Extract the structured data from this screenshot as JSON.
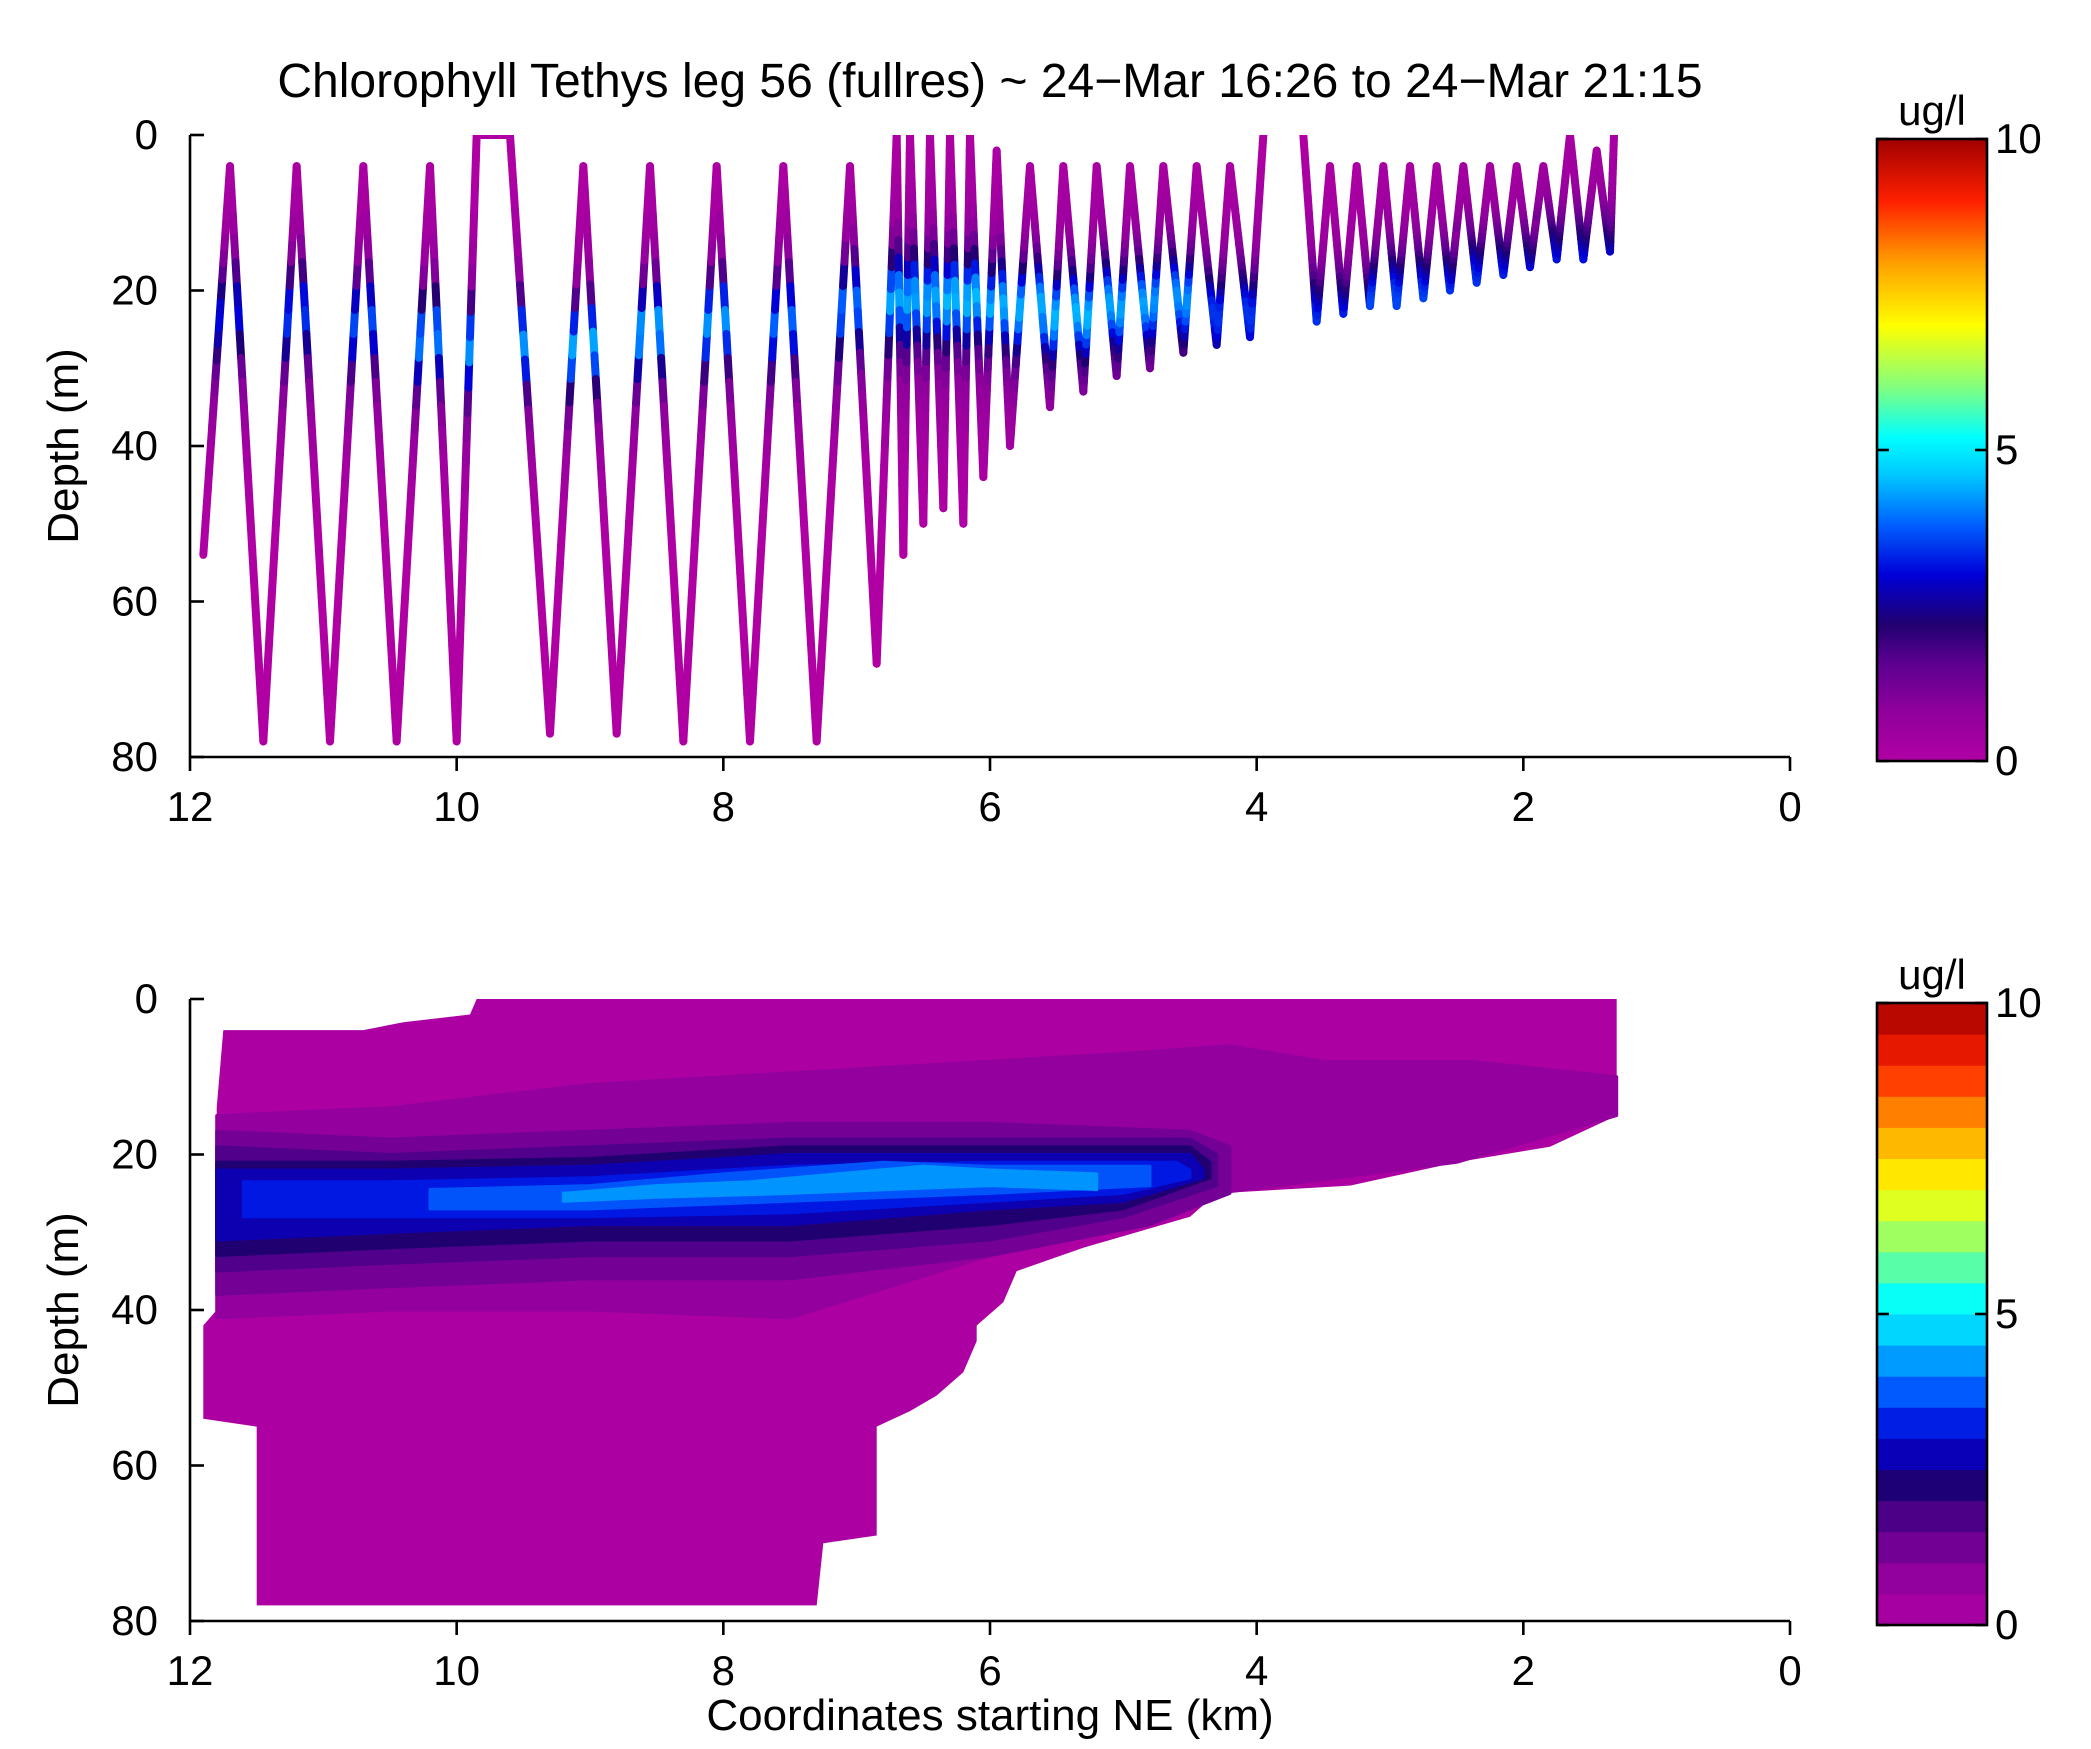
{
  "chart_data": [
    {
      "type": "scatter",
      "subtype": "glider-track",
      "title": "Chlorophyll Tethys leg 56 (fullres) ~ 24−Mar 16:26 to 24−Mar 21:15",
      "xlabel": "",
      "ylabel": "Depth (m)",
      "xlim": [
        12,
        0
      ],
      "ylim": [
        0,
        80
      ],
      "x_ticks": [
        "12",
        "10",
        "8",
        "6",
        "4",
        "2",
        "0"
      ],
      "y_ticks": [
        "0",
        "20",
        "40",
        "60",
        "80"
      ],
      "grid": false,
      "colorbar": {
        "label": "ug/l",
        "min": 0,
        "max": 10,
        "ticks": [
          "0",
          "5",
          "10"
        ],
        "colormap": "purple-blue-cyan-green-yellow-red"
      },
      "profile_turns": [
        [
          11.9,
          54
        ],
        [
          11.7,
          4
        ],
        [
          11.45,
          78
        ],
        [
          11.2,
          4
        ],
        [
          10.95,
          78
        ],
        [
          10.7,
          4
        ],
        [
          10.45,
          78
        ],
        [
          10.2,
          4
        ],
        [
          10.0,
          78
        ],
        [
          9.85,
          0
        ],
        [
          9.6,
          0
        ],
        [
          9.3,
          77
        ],
        [
          9.05,
          4
        ],
        [
          8.8,
          77
        ],
        [
          8.55,
          4
        ],
        [
          8.3,
          78
        ],
        [
          8.05,
          4
        ],
        [
          7.8,
          78
        ],
        [
          7.55,
          4
        ],
        [
          7.3,
          78
        ],
        [
          7.05,
          4
        ],
        [
          6.85,
          68
        ],
        [
          6.7,
          0
        ],
        [
          6.65,
          54
        ],
        [
          6.6,
          0
        ],
        [
          6.5,
          50
        ],
        [
          6.45,
          0
        ],
        [
          6.35,
          48
        ],
        [
          6.3,
          0
        ],
        [
          6.2,
          50
        ],
        [
          6.15,
          0
        ],
        [
          6.05,
          44
        ],
        [
          5.95,
          2
        ],
        [
          5.85,
          40
        ],
        [
          5.7,
          4
        ],
        [
          5.55,
          35
        ],
        [
          5.45,
          4
        ],
        [
          5.3,
          33
        ],
        [
          5.2,
          4
        ],
        [
          5.05,
          31
        ],
        [
          4.95,
          4
        ],
        [
          4.8,
          30
        ],
        [
          4.7,
          4
        ],
        [
          4.55,
          28
        ],
        [
          4.45,
          4
        ],
        [
          4.3,
          27
        ],
        [
          4.2,
          4
        ],
        [
          4.05,
          26
        ],
        [
          3.95,
          0
        ]
      ],
      "profile_turns_2": [
        [
          3.65,
          0
        ],
        [
          3.55,
          24
        ],
        [
          3.45,
          4
        ],
        [
          3.35,
          23
        ],
        [
          3.25,
          4
        ],
        [
          3.15,
          22
        ],
        [
          3.05,
          4
        ],
        [
          2.95,
          22
        ],
        [
          2.85,
          4
        ],
        [
          2.75,
          21
        ],
        [
          2.65,
          4
        ],
        [
          2.55,
          20
        ],
        [
          2.45,
          4
        ],
        [
          2.35,
          19
        ],
        [
          2.25,
          4
        ],
        [
          2.15,
          18
        ],
        [
          2.05,
          4
        ],
        [
          1.95,
          17
        ],
        [
          1.85,
          4
        ],
        [
          1.75,
          16
        ],
        [
          1.65,
          0
        ],
        [
          1.55,
          16
        ],
        [
          1.45,
          2
        ],
        [
          1.35,
          15
        ],
        [
          1.32,
          0
        ]
      ],
      "chlorophyll_max": [
        [
          11.8,
          23,
          2.5
        ],
        [
          11.2,
          23,
          3.0
        ],
        [
          10.7,
          24,
          3.2
        ],
        [
          10.2,
          26,
          3.8
        ],
        [
          9.7,
          27,
          4.0
        ],
        [
          9.1,
          27,
          4.2
        ],
        [
          8.5,
          25,
          4.2
        ],
        [
          8.0,
          24,
          4.0
        ],
        [
          7.5,
          24,
          3.5
        ],
        [
          7.0,
          22,
          3.6
        ],
        [
          6.6,
          21,
          4.2
        ],
        [
          6.2,
          21,
          4.4
        ],
        [
          5.8,
          22,
          4.3
        ],
        [
          5.4,
          23,
          4.4
        ],
        [
          5.0,
          22,
          4.2
        ],
        [
          4.6,
          21,
          4.0
        ],
        [
          4.3,
          23,
          3.0
        ],
        [
          3.5,
          24,
          3.0
        ],
        [
          2.8,
          21,
          3.2
        ],
        [
          2.2,
          19,
          3.0
        ],
        [
          1.6,
          17,
          2.8
        ]
      ]
    },
    {
      "type": "heatmap",
      "subtype": "filled-contour",
      "title": "",
      "xlabel": "Coordinates starting NE (km)",
      "ylabel": "Depth (m)",
      "xlim": [
        12,
        0
      ],
      "ylim": [
        0,
        80
      ],
      "x_ticks": [
        "12",
        "10",
        "8",
        "6",
        "4",
        "2",
        "0"
      ],
      "y_ticks": [
        "0",
        "20",
        "40",
        "60",
        "80"
      ],
      "grid": false,
      "colorbar": {
        "label": "ug/l",
        "min": 0,
        "max": 10,
        "ticks": [
          "0",
          "5",
          "10"
        ],
        "levels": 20
      },
      "domain_top": [
        [
          11.75,
          4
        ],
        [
          10.7,
          4
        ],
        [
          10.4,
          3
        ],
        [
          9.9,
          2
        ],
        [
          9.85,
          0
        ],
        [
          1.3,
          0
        ]
      ],
      "domain_bottom": [
        [
          1.3,
          15
        ],
        [
          1.8,
          19
        ],
        [
          2.5,
          21
        ],
        [
          3.3,
          24
        ],
        [
          4.3,
          25
        ],
        [
          4.5,
          28
        ],
        [
          5.3,
          32
        ],
        [
          5.8,
          35
        ],
        [
          5.9,
          39
        ],
        [
          6.1,
          42
        ],
        [
          6.1,
          44
        ],
        [
          6.2,
          48
        ],
        [
          6.4,
          51
        ],
        [
          6.6,
          53
        ],
        [
          6.85,
          55
        ],
        [
          6.85,
          69
        ],
        [
          7.25,
          70
        ],
        [
          7.3,
          78
        ],
        [
          11.5,
          78
        ],
        [
          11.5,
          55
        ],
        [
          11.9,
          54
        ],
        [
          11.9,
          42
        ],
        [
          11.8,
          40
        ],
        [
          11.8,
          14
        ]
      ],
      "contour_layers": [
        {
          "level": 0.5,
          "top": [
            [
              11.8,
              15
            ],
            [
              10.5,
              14
            ],
            [
              9,
              11
            ],
            [
              7,
              9
            ],
            [
              5,
              7
            ],
            [
              4.2,
              6
            ],
            [
              3.5,
              8
            ],
            [
              2.4,
              8
            ],
            [
              1.3,
              10
            ]
          ],
          "bottom": [
            [
              1.3,
              15
            ],
            [
              2.5,
              21
            ],
            [
              4.3,
              25
            ],
            [
              4.8,
              29
            ],
            [
              6,
              33
            ],
            [
              7.5,
              41
            ],
            [
              9,
              40
            ],
            [
              10.5,
              40
            ],
            [
              11.8,
              41
            ]
          ]
        },
        {
          "level": 1.0,
          "top": [
            [
              11.8,
              17
            ],
            [
              10.5,
              18
            ],
            [
              9,
              17
            ],
            [
              7.5,
              16
            ],
            [
              6,
              16
            ],
            [
              4.5,
              17
            ],
            [
              4.2,
              19
            ]
          ],
          "bottom": [
            [
              4.2,
              25
            ],
            [
              4.8,
              29
            ],
            [
              6,
              33
            ],
            [
              7.5,
              36
            ],
            [
              9,
              36
            ],
            [
              10.5,
              37
            ],
            [
              11.8,
              38
            ]
          ]
        },
        {
          "level": 1.5,
          "top": [
            [
              11.8,
              19
            ],
            [
              10.5,
              20
            ],
            [
              9,
              19
            ],
            [
              7.5,
              18
            ],
            [
              6,
              18
            ],
            [
              4.5,
              18
            ],
            [
              4.3,
              20
            ]
          ],
          "bottom": [
            [
              4.3,
              24
            ],
            [
              5,
              28
            ],
            [
              6,
              31
            ],
            [
              7.5,
              33
            ],
            [
              9,
              33
            ],
            [
              10.5,
              34
            ],
            [
              11.8,
              35
            ]
          ]
        },
        {
          "level": 2.0,
          "top": [
            [
              11.8,
              21
            ],
            [
              10.5,
              21
            ],
            [
              9,
              20.5
            ],
            [
              7.5,
              19
            ],
            [
              6,
              19
            ],
            [
              4.5,
              19
            ],
            [
              4.35,
              21
            ]
          ],
          "bottom": [
            [
              4.35,
              23
            ],
            [
              5,
              27
            ],
            [
              6,
              29
            ],
            [
              7.5,
              31
            ],
            [
              9,
              31
            ],
            [
              10.5,
              32
            ],
            [
              11.8,
              33
            ]
          ]
        },
        {
          "level": 2.5,
          "top": [
            [
              11.8,
              22
            ],
            [
              10.5,
              22
            ],
            [
              9,
              21.5
            ],
            [
              7.5,
              20
            ],
            [
              6,
              20
            ],
            [
              4.5,
              20
            ],
            [
              4.4,
              22
            ]
          ],
          "bottom": [
            [
              4.4,
              23
            ],
            [
              5,
              26
            ],
            [
              6,
              27
            ],
            [
              7.5,
              29
            ],
            [
              9,
              29
            ],
            [
              10.5,
              30
            ],
            [
              11.8,
              31
            ]
          ]
        },
        {
          "level": 3.0,
          "top": [
            [
              11.6,
              23.5
            ],
            [
              10.5,
              23.5
            ],
            [
              9,
              23
            ],
            [
              7.5,
              21.5
            ],
            [
              6,
              21
            ],
            [
              4.6,
              21
            ],
            [
              4.5,
              22
            ]
          ],
          "bottom": [
            [
              4.5,
              23
            ],
            [
              5,
              25
            ],
            [
              6,
              26
            ],
            [
              7.5,
              27.5
            ],
            [
              9,
              28
            ],
            [
              10.5,
              28
            ],
            [
              11.6,
              28
            ]
          ]
        },
        {
          "level": 3.5,
          "top": [
            [
              10.2,
              24.5
            ],
            [
              9,
              24
            ],
            [
              8,
              22.5
            ],
            [
              6.8,
              21
            ],
            [
              6,
              21.5
            ],
            [
              4.8,
              21.5
            ]
          ],
          "bottom": [
            [
              4.8,
              24
            ],
            [
              6,
              25
            ],
            [
              7.5,
              26
            ],
            [
              9,
              27
            ],
            [
              10.2,
              27
            ]
          ]
        },
        {
          "level": 4.0,
          "top": [
            [
              9.2,
              25
            ],
            [
              8.5,
              24
            ],
            [
              7.8,
              23.5
            ],
            [
              6.5,
              21.5
            ],
            [
              6,
              22
            ],
            [
              5.2,
              22.5
            ]
          ],
          "bottom": [
            [
              5.2,
              24.5
            ],
            [
              6,
              24
            ],
            [
              7.5,
              25
            ],
            [
              8.5,
              25.5
            ],
            [
              9.2,
              26
            ]
          ]
        }
      ]
    }
  ]
}
